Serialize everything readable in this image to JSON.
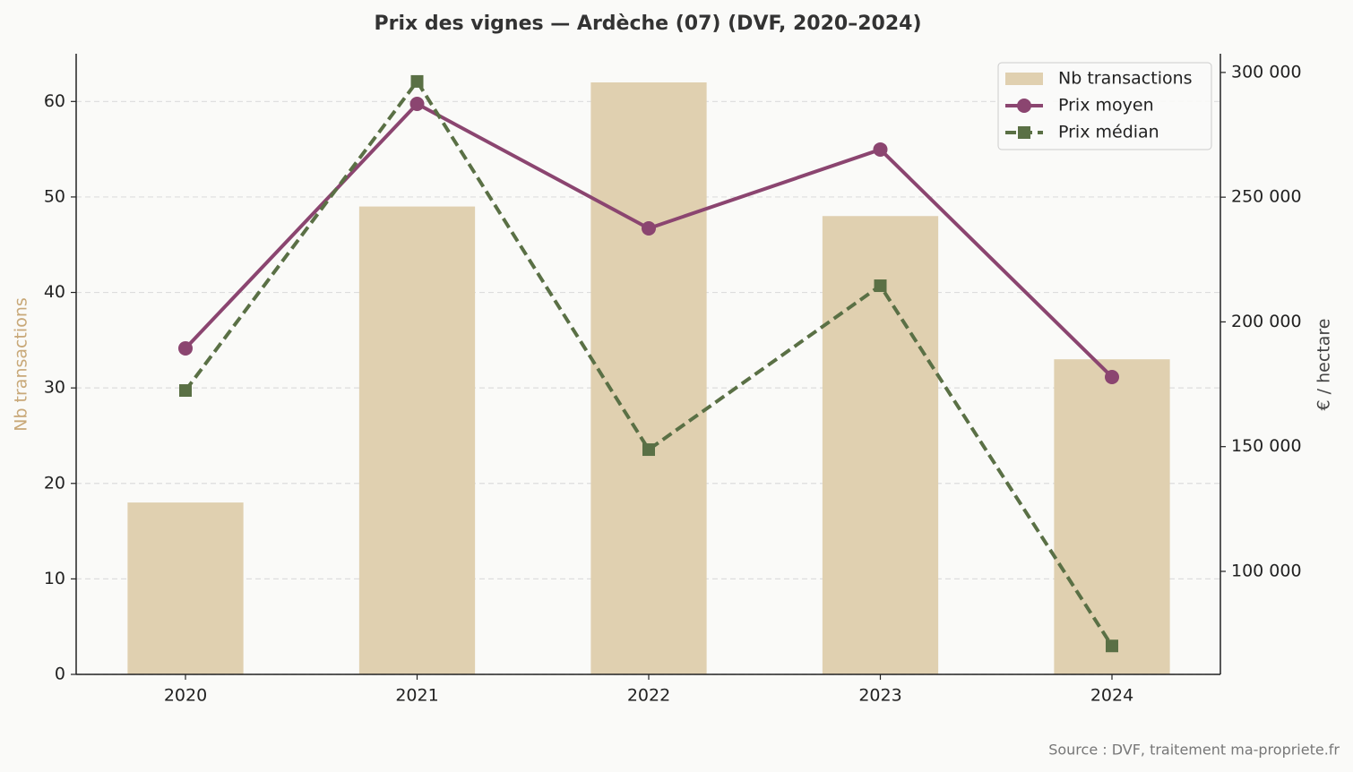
{
  "chart_data": {
    "type": "combo",
    "title": "Prix des vignes — Ardèche (07) (DVF, 2020–2024)",
    "categories": [
      "2020",
      "2021",
      "2022",
      "2023",
      "2024"
    ],
    "ylabel": "Nb transactions",
    "y2label": "€ / hectare",
    "source": "Source : DVF, traitement ma-propriete.fr",
    "ylim": [
      0,
      65
    ],
    "yticks": [
      0,
      10,
      20,
      30,
      40,
      50,
      60
    ],
    "y2lim": [
      58700,
      307500
    ],
    "y2ticks": [
      {
        "value": 100000,
        "label": "100 000"
      },
      {
        "value": 150000,
        "label": "150 000"
      },
      {
        "value": 200000,
        "label": "200 000"
      },
      {
        "value": 250000,
        "label": "250 000"
      },
      {
        "value": 300000,
        "label": "300 000"
      }
    ],
    "grid": true,
    "legend": "upper right",
    "series": [
      {
        "name": "Nb transactions",
        "type": "bar",
        "axis": "y",
        "color": "#e0d0b0",
        "values": [
          18,
          49,
          62,
          48,
          33
        ]
      },
      {
        "name": "Prix moyen",
        "type": "line",
        "axis": "y2",
        "color": "#8b4570",
        "marker": "circle",
        "dashed": false,
        "values": [
          189400,
          287400,
          237500,
          269100,
          177900
        ]
      },
      {
        "name": "Prix médian",
        "type": "line",
        "axis": "y2",
        "color": "#5a7045",
        "marker": "square",
        "dashed": true,
        "values": [
          172500,
          296400,
          148800,
          214500,
          70100
        ]
      }
    ]
  }
}
